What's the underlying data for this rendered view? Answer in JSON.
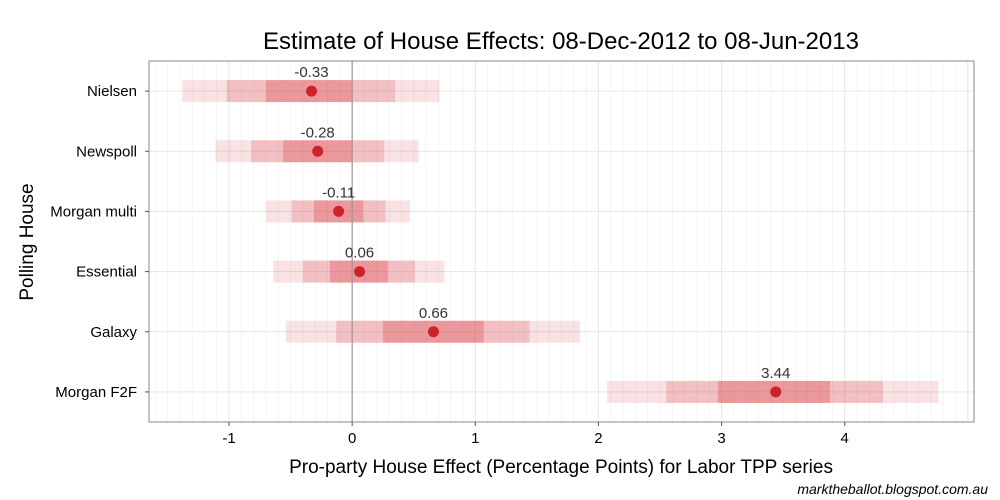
{
  "chart_data": {
    "type": "interval",
    "title": "Estimate of House Effects: 08-Dec-2012 to 08-Jun-2013",
    "xlabel": "Pro-party House Effect (Percentage Points) for Labor TPP series",
    "ylabel": "Polling House",
    "xlim": [
      -1.65,
      5.05
    ],
    "x_ticks": [
      -1,
      0,
      1,
      2,
      3,
      4
    ],
    "x_tick_labels": [
      "-1",
      "0",
      "1",
      "2",
      "3",
      "4"
    ],
    "reference_line": 0,
    "grid": true,
    "colors": {
      "point": "#cc2229",
      "band": "#d93a45",
      "reference": "#999999",
      "panel_border": "#888888"
    },
    "houses": [
      {
        "name": "Nielsen",
        "estimate": -0.33,
        "label": "-0.33",
        "intervals": [
          [
            -1.38,
            0.71
          ],
          [
            -1.02,
            0.35
          ],
          [
            -0.7,
            0.0
          ]
        ]
      },
      {
        "name": "Newspoll",
        "estimate": -0.28,
        "label": "-0.28",
        "intervals": [
          [
            -1.11,
            0.54
          ],
          [
            -0.82,
            0.26
          ],
          [
            -0.56,
            0.0
          ]
        ]
      },
      {
        "name": "Morgan multi",
        "estimate": -0.11,
        "label": "-0.11",
        "intervals": [
          [
            -0.7,
            0.47
          ],
          [
            -0.49,
            0.27
          ],
          [
            -0.31,
            0.09
          ]
        ]
      },
      {
        "name": "Essential",
        "estimate": 0.06,
        "label": "0.06",
        "intervals": [
          [
            -0.64,
            0.75
          ],
          [
            -0.4,
            0.51
          ],
          [
            -0.18,
            0.29
          ]
        ]
      },
      {
        "name": "Galaxy",
        "estimate": 0.66,
        "label": "0.66",
        "intervals": [
          [
            -0.54,
            1.85
          ],
          [
            -0.13,
            1.44
          ],
          [
            0.25,
            1.07
          ]
        ]
      },
      {
        "name": "Morgan F2F",
        "estimate": 3.44,
        "label": "3.44",
        "intervals": [
          [
            2.07,
            4.76
          ],
          [
            2.55,
            4.31
          ],
          [
            2.97,
            3.88
          ]
        ]
      }
    ]
  },
  "credit": "marktheballot.blogspot.com.au"
}
